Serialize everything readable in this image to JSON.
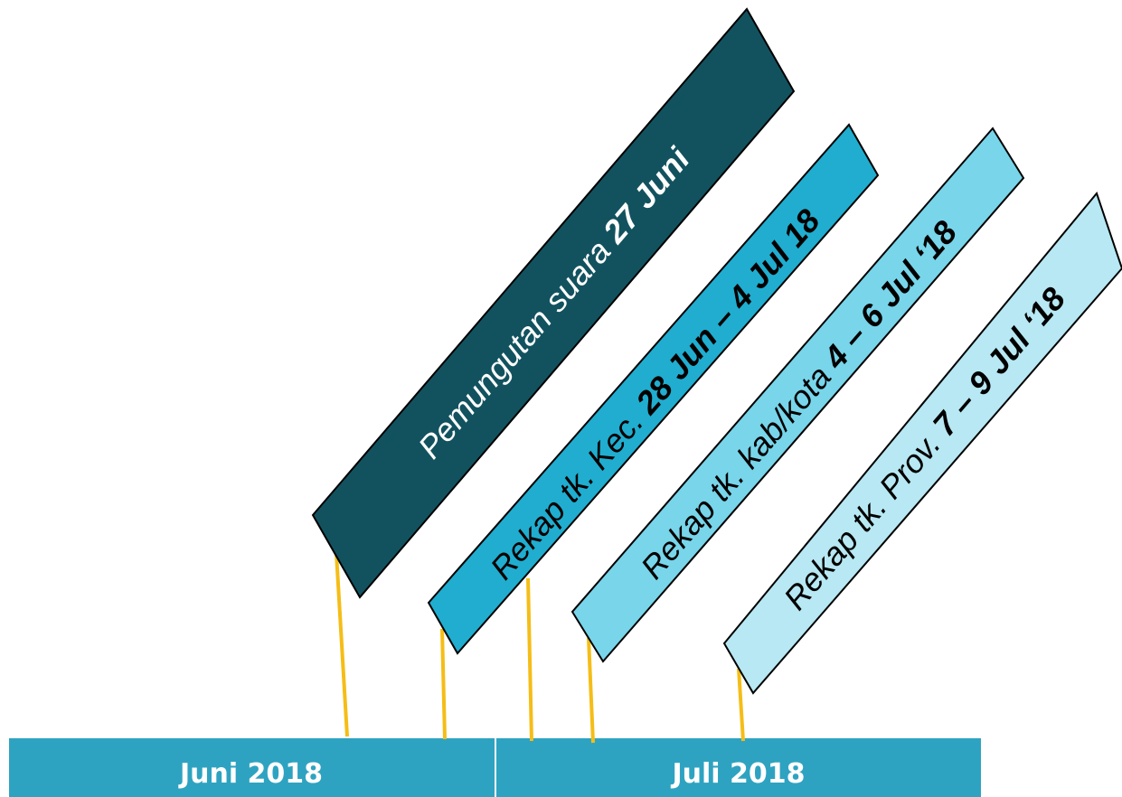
{
  "months": [
    {
      "label": "Juni 2018"
    },
    {
      "label": "Juli 2018"
    }
  ],
  "events": [
    {
      "prefix": "Pemungutan suara ",
      "bold": "27 Juni",
      "fill": "#12525f",
      "text_color": "#ffffff"
    },
    {
      "prefix": "Rekap tk. Kec. ",
      "bold": "28 Jun – 4 Jul 18",
      "fill": "#20adcf",
      "text_color": "#000000"
    },
    {
      "prefix": "Rekap tk. kab/kota ",
      "bold": "4 – 6 Jul ‘18",
      "fill": "#78d5ea",
      "text_color": "#000000"
    },
    {
      "prefix": "Rekap tk. Prov. ",
      "bold": "7 – 9 Jul ‘18",
      "fill": "#b7e8f3",
      "text_color": "#000000"
    }
  ],
  "colors": {
    "month_bar": "#2ea3c1",
    "connector": "#f5bd16",
    "outline": "#000000"
  }
}
